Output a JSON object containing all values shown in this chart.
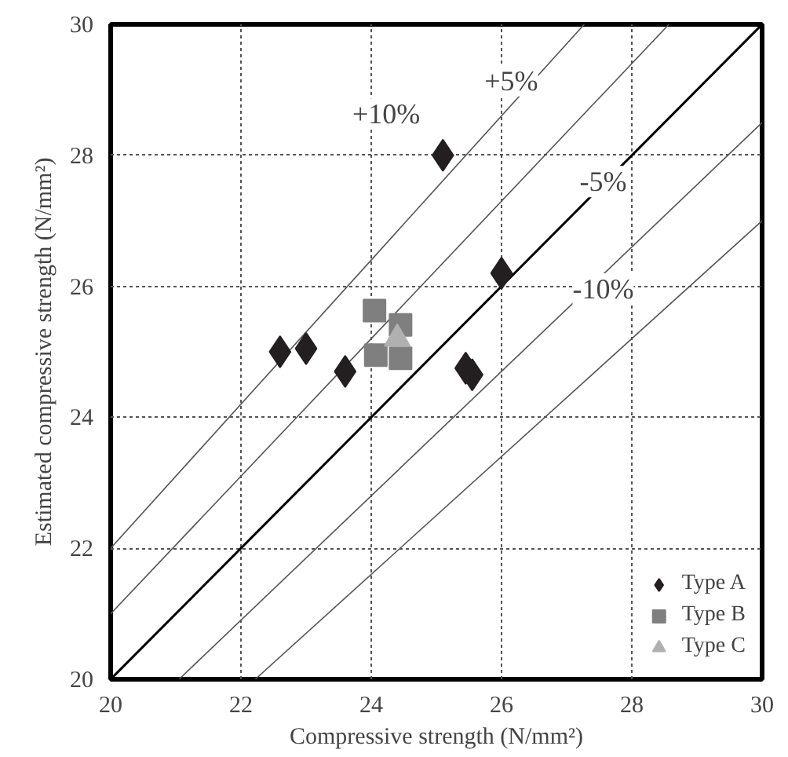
{
  "chart_data": {
    "type": "scatter",
    "xlabel": "Compressive strength (N/mm²)",
    "ylabel": "Estimated compressive strength (N/mm²)",
    "xlim": [
      20,
      30
    ],
    "ylim": [
      20,
      30
    ],
    "xticks": [
      20,
      22,
      24,
      26,
      28,
      30
    ],
    "yticks": [
      20,
      22,
      24,
      26,
      28,
      30
    ],
    "grid": true,
    "legend": "bottom right",
    "series": [
      {
        "type": "line",
        "color": "#000000",
        "x": [
          20,
          30
        ],
        "values": [
          20,
          30
        ],
        "line_style": "solid"
      },
      {
        "type": "line",
        "color": "#555555",
        "x": [
          20,
          27.27
        ],
        "values": [
          22,
          30
        ],
        "line_style": "solid"
      },
      {
        "type": "line",
        "color": "#555555",
        "x": [
          20,
          28.57
        ],
        "values": [
          21,
          30
        ],
        "line_style": "solid"
      },
      {
        "type": "line",
        "color": "#555555",
        "x": [
          21.05,
          30
        ],
        "values": [
          20,
          28.5
        ],
        "line_style": "solid"
      },
      {
        "type": "line",
        "color": "#555555",
        "x": [
          22.22,
          30
        ],
        "values": [
          20,
          27
        ],
        "line_style": "solid"
      },
      {
        "name": "Type A",
        "color": "#231f20",
        "marker": "diamond",
        "x": [
          22.6,
          23.0,
          23.6,
          24.2,
          25.1,
          25.45,
          25.55,
          26.0
        ],
        "values": [
          25.0,
          25.05,
          24.7,
          null,
          28.0,
          24.75,
          24.65,
          26.2
        ]
      },
      {
        "name": "Type B",
        "color": "#7f7f7f",
        "marker": "square",
        "x": [
          24.05,
          24.45,
          24.07,
          24.45
        ],
        "values": [
          25.63,
          25.41,
          24.95,
          24.9
        ]
      },
      {
        "name": "Type C",
        "color": "#b0b0b0",
        "marker": "triangle",
        "x": [
          24.4
        ],
        "values": [
          25.2
        ]
      }
    ],
    "annotations": [
      {
        "text": "+10%",
        "x": 24.23,
        "y": 28.63
      },
      {
        "text": "+5%",
        "x": 26.15,
        "y": 29.14
      },
      {
        "text": "-5%",
        "x": 27.56,
        "y": 27.6
      },
      {
        "text": "-10%",
        "x": 27.56,
        "y": 25.96
      }
    ]
  }
}
